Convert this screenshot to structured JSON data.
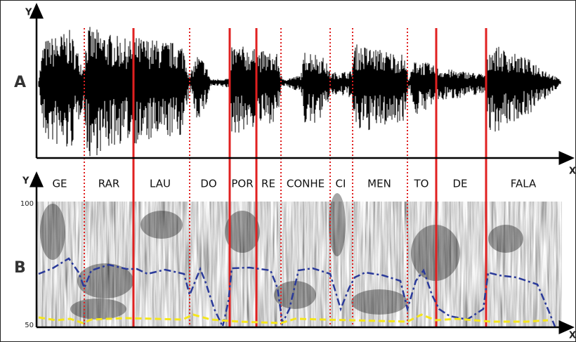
{
  "panel_a": {
    "label": "A",
    "y_axis": "Y",
    "x_axis": "X"
  },
  "panel_b": {
    "label": "B",
    "y_axis": "Y",
    "x_axis": "X",
    "y_top": 100,
    "y_bottom": 50
  },
  "syllables": [
    "GE",
    "RAR",
    "LAU",
    "DO",
    "POR",
    "RE",
    "CONHE",
    "CI",
    "MEN",
    "TO",
    "DE",
    "FALA"
  ]
}
